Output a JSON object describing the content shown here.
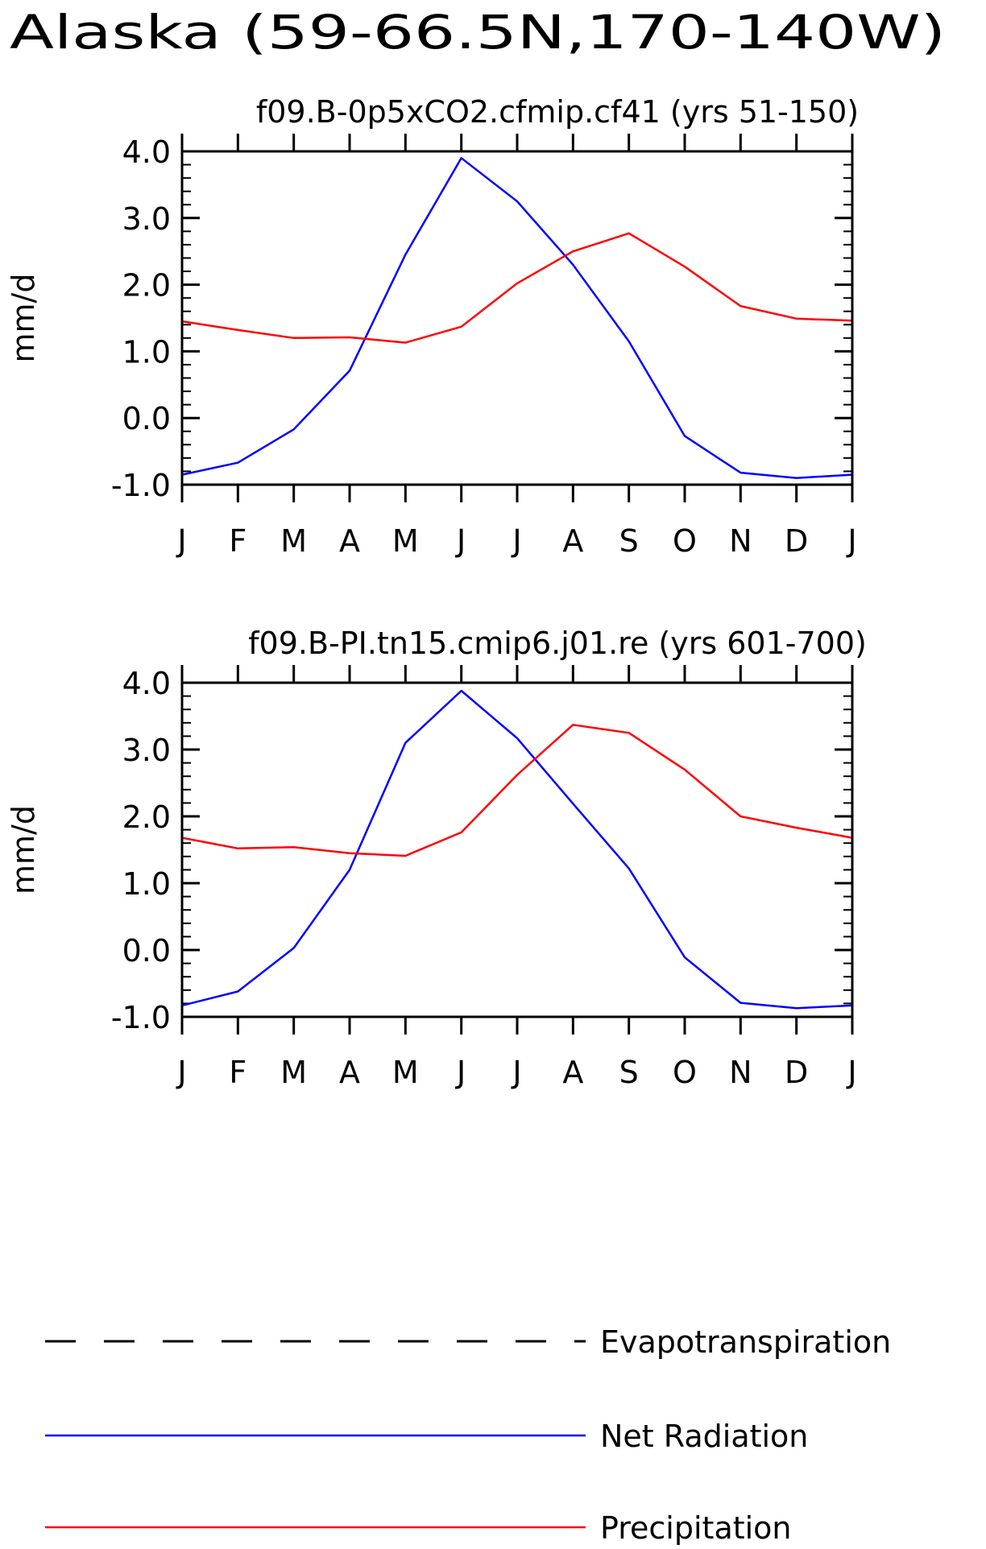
{
  "figure": {
    "title": "Alaska (59-66.5N,170-140W)"
  },
  "chart_data": [
    {
      "type": "line",
      "title": "f09.B-0p5xCO2.cfmip.cf41 (yrs 51-150)",
      "xlabel": "",
      "ylabel": "mm/d",
      "categories": [
        "J",
        "F",
        "M",
        "A",
        "M",
        "J",
        "J",
        "A",
        "S",
        "O",
        "N",
        "D",
        "J"
      ],
      "ylim": [
        -1.0,
        4.0
      ],
      "yticks": [
        "-1.0",
        "0.0",
        "1.0",
        "2.0",
        "3.0",
        "4.0"
      ],
      "grid": false,
      "series": [
        {
          "name": "Net Radiation",
          "color": "#0000ff",
          "values": [
            -0.85,
            -0.67,
            -0.17,
            0.71,
            2.45,
            3.9,
            3.25,
            2.3,
            1.15,
            -0.27,
            -0.82,
            -0.9,
            -0.85
          ]
        },
        {
          "name": "Precipitation",
          "color": "#ff0000",
          "values": [
            1.45,
            1.32,
            1.2,
            1.21,
            1.13,
            1.37,
            2.02,
            2.5,
            2.77,
            2.27,
            1.68,
            1.49,
            1.46
          ]
        }
      ]
    },
    {
      "type": "line",
      "title": "f09.B-PI.tn15.cmip6.j01.re (yrs 601-700)",
      "xlabel": "",
      "ylabel": "mm/d",
      "categories": [
        "J",
        "F",
        "M",
        "A",
        "M",
        "J",
        "J",
        "A",
        "S",
        "O",
        "N",
        "D",
        "J"
      ],
      "ylim": [
        -1.0,
        4.0
      ],
      "yticks": [
        "-1.0",
        "0.0",
        "1.0",
        "2.0",
        "3.0",
        "4.0"
      ],
      "grid": false,
      "series": [
        {
          "name": "Net Radiation",
          "color": "#0000ff",
          "values": [
            -0.83,
            -0.62,
            0.03,
            1.2,
            3.1,
            3.88,
            3.17,
            2.19,
            1.22,
            -0.11,
            -0.79,
            -0.87,
            -0.83
          ]
        },
        {
          "name": "Precipitation",
          "color": "#ff0000",
          "values": [
            1.68,
            1.52,
            1.54,
            1.45,
            1.41,
            1.76,
            2.62,
            3.37,
            3.25,
            2.7,
            2.0,
            1.83,
            1.68
          ]
        }
      ]
    }
  ],
  "legend": {
    "placement": "bottom",
    "items": [
      {
        "label": "Evapotranspiration",
        "color": "#000000",
        "style": "dashed"
      },
      {
        "label": "Net Radiation",
        "color": "#0000ff",
        "style": "solid"
      },
      {
        "label": "Precipitation",
        "color": "#ff0000",
        "style": "solid"
      }
    ]
  }
}
